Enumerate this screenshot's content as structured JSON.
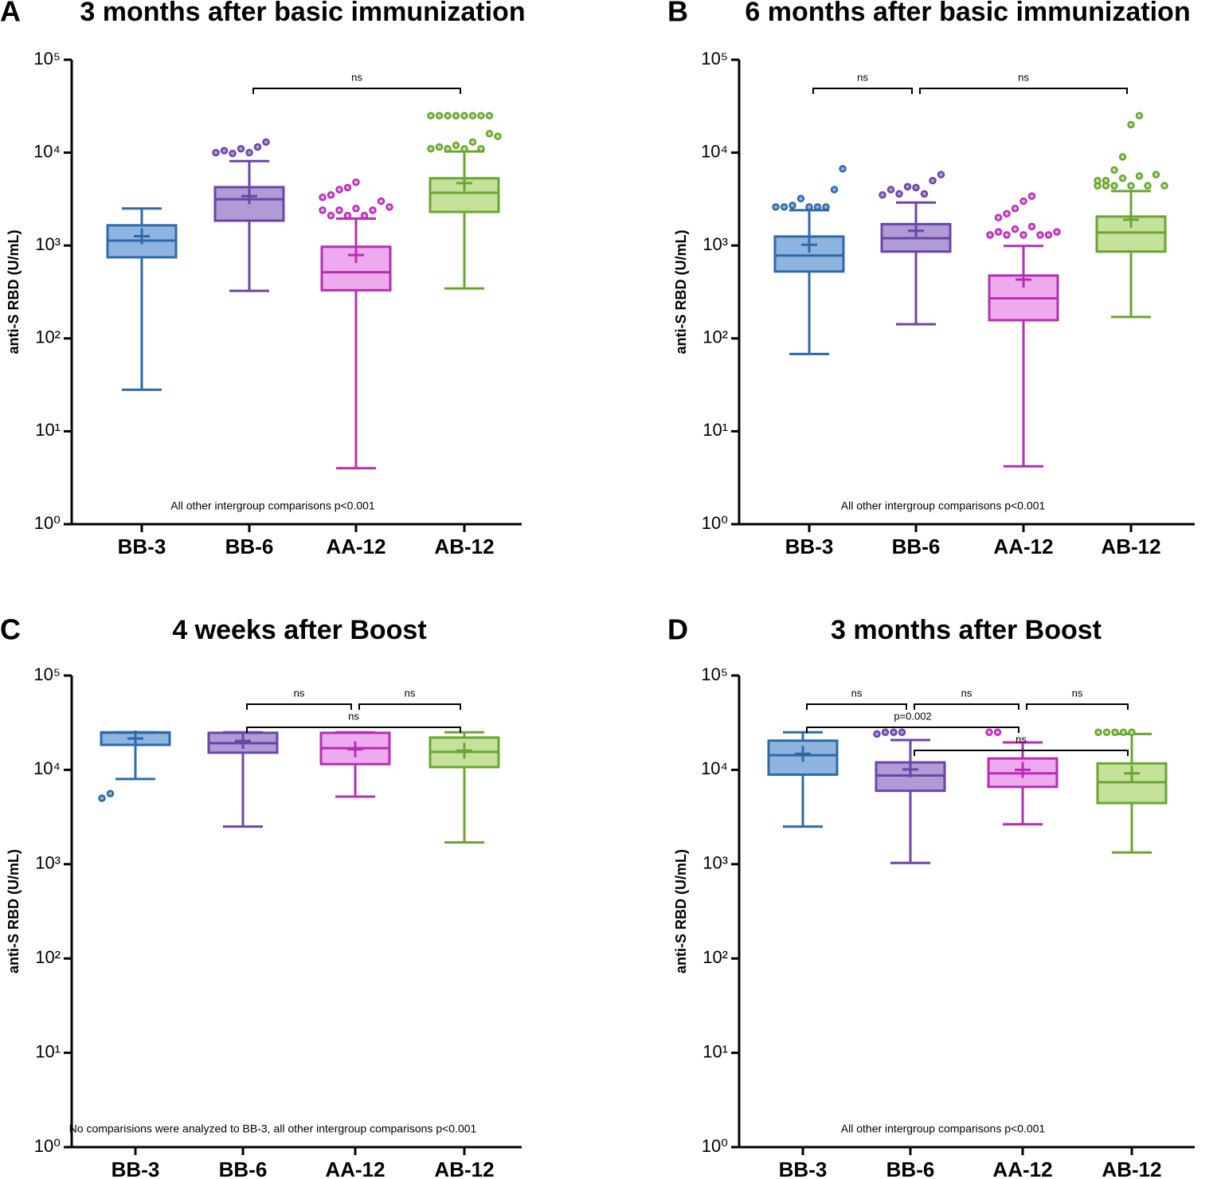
{
  "chart_data": [
    {
      "type": "box",
      "panel": "A",
      "title": "3 months after basic immunization",
      "ylabel": "anti-S RBD (U/mL)",
      "log": true,
      "ylim": [
        1,
        100000
      ],
      "yticks": [
        {
          "value": 1,
          "label": "10⁰"
        },
        {
          "value": 10,
          "label": "10¹"
        },
        {
          "value": 100,
          "label": "10²"
        },
        {
          "value": 1000,
          "label": "10³"
        },
        {
          "value": 10000,
          "label": "10⁴"
        },
        {
          "value": 100000,
          "label": "10⁵"
        }
      ],
      "categories": [
        "BB-3",
        "BB-6",
        "AA-12",
        "AB-12"
      ],
      "boxes": [
        {
          "color": "#2f6aa8",
          "fill": "#8fb4e0",
          "min": 28,
          "q1": 747,
          "median": 1130,
          "q3": 1650,
          "max": 2500,
          "mean": 1260,
          "outliers": []
        },
        {
          "color": "#6b45a6",
          "fill": "#b09bd6",
          "min": 325,
          "q1": 1850,
          "median": 3150,
          "q3": 4250,
          "max": 8100,
          "mean": 3400,
          "outliers": [
            10000,
            10500,
            9800,
            11000,
            10000,
            11500,
            13000
          ]
        },
        {
          "color": "#b62fb2",
          "fill": "#eeaaee",
          "min": 4,
          "q1": 330,
          "median": 515,
          "q3": 970,
          "max": 1950,
          "mean": 790,
          "outliers": [
            2400,
            2100,
            2400,
            2100,
            2500,
            2100,
            2400,
            3000,
            2600,
            3300,
            3500,
            4000,
            4200,
            4800
          ]
        },
        {
          "color": "#6aa534",
          "fill": "#c5e29a",
          "min": 345,
          "q1": 2300,
          "median": 3700,
          "q3": 5300,
          "max": 10300,
          "mean": 4700,
          "outliers": [
            11000,
            11500,
            11000,
            12000,
            11000,
            13000,
            11000,
            16000,
            15000,
            25000,
            25000,
            25000,
            25000,
            25000,
            25000,
            25000,
            25000
          ]
        }
      ],
      "comparisons": [
        {
          "from": "BB-6",
          "to": "AB-12",
          "label": "ns"
        }
      ],
      "note": "All other intergroup comparisons p<0.001"
    },
    {
      "type": "box",
      "panel": "B",
      "title": "6 months after basic immunization",
      "ylabel": "anti-S RBD (U/mL)",
      "log": true,
      "ylim": [
        1,
        100000
      ],
      "yticks": [
        {
          "value": 1,
          "label": "10⁰"
        },
        {
          "value": 10,
          "label": "10¹"
        },
        {
          "value": 100,
          "label": "10²"
        },
        {
          "value": 1000,
          "label": "10³"
        },
        {
          "value": 10000,
          "label": "10⁴"
        },
        {
          "value": 100000,
          "label": "10⁵"
        }
      ],
      "categories": [
        "BB-3",
        "BB-6",
        "AA-12",
        "AB-12"
      ],
      "boxes": [
        {
          "color": "#2f6aa8",
          "fill": "#8fb4e0",
          "min": 68,
          "q1": 525,
          "median": 780,
          "q3": 1250,
          "max": 2400,
          "mean": 1020,
          "outliers": [
            2600,
            2600,
            2700,
            3200,
            2600,
            2600,
            2600,
            4000,
            6700
          ]
        },
        {
          "color": "#6b45a6",
          "fill": "#b09bd6",
          "min": 142,
          "q1": 860,
          "median": 1200,
          "q3": 1700,
          "max": 2900,
          "mean": 1440,
          "outliers": [
            3500,
            4000,
            3600,
            4300,
            4200,
            3600,
            5000,
            5800
          ]
        },
        {
          "color": "#b62fb2",
          "fill": "#eeaaee",
          "min": 4.2,
          "q1": 157,
          "median": 270,
          "q3": 475,
          "max": 990,
          "mean": 430,
          "outliers": [
            1300,
            1400,
            1300,
            1500,
            1300,
            1600,
            1300,
            1300,
            1400,
            1300,
            2000,
            2200,
            2500,
            3000,
            3400
          ]
        },
        {
          "color": "#6aa534",
          "fill": "#c5e29a",
          "min": 170,
          "q1": 860,
          "median": 1380,
          "q3": 2050,
          "max": 3850,
          "mean": 1900,
          "outliers": [
            4400,
            5000,
            4400,
            5300,
            4400,
            5600,
            4400,
            5800,
            4400,
            5000,
            4400,
            6500,
            9000,
            20000,
            25000
          ]
        }
      ],
      "comparisons": [
        {
          "from": "BB-6",
          "to": "AB-12",
          "label": "ns"
        },
        {
          "from": "BB-3",
          "to": "BB-6",
          "label": "ns"
        }
      ],
      "note": "All other intergroup comparisons p<0.001"
    },
    {
      "type": "box",
      "panel": "C",
      "title": "4 weeks after Boost",
      "ylabel": "anti-S RBD (U/mL)",
      "log": true,
      "ylim": [
        1,
        100000
      ],
      "yticks": [
        {
          "value": 1,
          "label": "10⁰"
        },
        {
          "value": 10,
          "label": "10¹"
        },
        {
          "value": 100,
          "label": "10²"
        },
        {
          "value": 1000,
          "label": "10³"
        },
        {
          "value": 10000,
          "label": "10⁴"
        },
        {
          "value": 100000,
          "label": "10⁵"
        }
      ],
      "categories": [
        "BB-3",
        "BB-6",
        "AA-12",
        "AB-12"
      ],
      "boxes": [
        {
          "color": "#2f6aa8",
          "fill": "#8fb4e0",
          "min": 8000,
          "q1": 18400,
          "median": 24800,
          "q3": 25000,
          "max": 25000,
          "mean": 21500,
          "outliers": [
            5000,
            5600
          ]
        },
        {
          "color": "#6b45a6",
          "fill": "#b09bd6",
          "min": 2500,
          "q1": 15200,
          "median": 19200,
          "q3": 24700,
          "max": 25000,
          "mean": 20300,
          "outliers": []
        },
        {
          "color": "#b62fb2",
          "fill": "#eeaaee",
          "min": 5200,
          "q1": 11500,
          "median": 17000,
          "q3": 24700,
          "max": 25000,
          "mean": 16500,
          "outliers": []
        },
        {
          "color": "#6aa534",
          "fill": "#c5e29a",
          "min": 1700,
          "q1": 10700,
          "median": 15500,
          "q3": 22000,
          "max": 25000,
          "mean": 16000,
          "outliers": []
        }
      ],
      "comparisons": [
        {
          "from": "BB-6",
          "to": "AA-12",
          "label": "ns"
        },
        {
          "from": "AA-12",
          "to": "AB-12",
          "label": "ns"
        },
        {
          "from": "BB-6",
          "to": "AB-12",
          "label": "ns"
        }
      ],
      "note": "No comparisions were analyzed to BB-3, all other intergroup comparisons p<0.001"
    },
    {
      "type": "box",
      "panel": "D",
      "title": "3 months after Boost",
      "ylabel": "anti-S RBD (U/mL)",
      "log": true,
      "ylim": [
        1,
        100000
      ],
      "yticks": [
        {
          "value": 1,
          "label": "10⁰"
        },
        {
          "value": 10,
          "label": "10¹"
        },
        {
          "value": 100,
          "label": "10²"
        },
        {
          "value": 1000,
          "label": "10³"
        },
        {
          "value": 10000,
          "label": "10⁴"
        },
        {
          "value": 100000,
          "label": "10⁵"
        }
      ],
      "categories": [
        "BB-3",
        "BB-6",
        "AA-12",
        "AB-12"
      ],
      "boxes": [
        {
          "color": "#2f6aa8",
          "fill": "#8fb4e0",
          "min": 2500,
          "q1": 8900,
          "median": 14300,
          "q3": 20400,
          "max": 25000,
          "mean": 14800,
          "outliers": []
        },
        {
          "color": "#6b45a6",
          "fill": "#b09bd6",
          "min": 1030,
          "q1": 6000,
          "median": 8700,
          "q3": 12000,
          "max": 20700,
          "mean": 10100,
          "outliers": [
            24000,
            25000,
            25000,
            25000
          ]
        },
        {
          "color": "#b62fb2",
          "fill": "#eeaaee",
          "min": 2650,
          "q1": 6600,
          "median": 9200,
          "q3": 13200,
          "max": 19500,
          "mean": 10000,
          "outliers": [
            25000,
            25000
          ]
        },
        {
          "color": "#6aa534",
          "fill": "#c5e29a",
          "min": 1330,
          "q1": 4450,
          "median": 7400,
          "q3": 11700,
          "max": 24000,
          "mean": 9200,
          "outliers": [
            25000,
            25000,
            25000,
            25000,
            25000
          ]
        }
      ],
      "comparisons": [
        {
          "from": "BB-3",
          "to": "BB-6",
          "label": "ns"
        },
        {
          "from": "BB-6",
          "to": "AA-12",
          "label": "ns"
        },
        {
          "from": "AA-12",
          "to": "AB-12",
          "label": "ns"
        },
        {
          "from": "BB-3",
          "to": "AA-12",
          "label": "p=0.002"
        },
        {
          "from": "BB-6",
          "to": "AB-12",
          "label": "ns"
        }
      ],
      "note": "All other intergroup comparisons p<0.001"
    }
  ]
}
